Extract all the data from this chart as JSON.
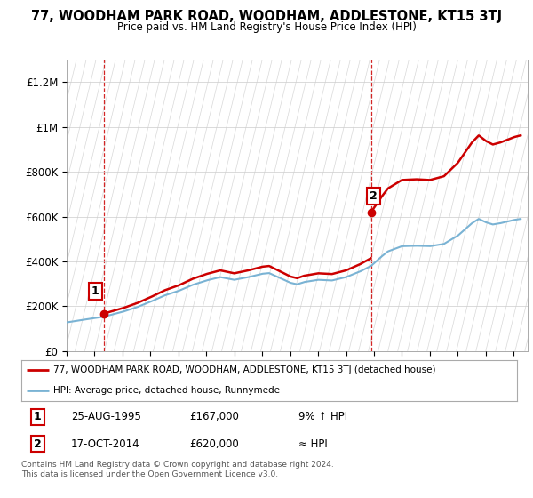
{
  "title": "77, WOODHAM PARK ROAD, WOODHAM, ADDLESTONE, KT15 3TJ",
  "subtitle": "Price paid vs. HM Land Registry's House Price Index (HPI)",
  "ylim": [
    0,
    1300000
  ],
  "xlim_start": 1993,
  "xlim_end": 2026,
  "sale1_date": 1995.65,
  "sale1_price": 167000,
  "sale2_date": 2014.79,
  "sale2_price": 620000,
  "property_color": "#cc0000",
  "hpi_color": "#7ab3d4",
  "hatch_color": "#d8d8d8",
  "legend_line1": "77, WOODHAM PARK ROAD, WOODHAM, ADDLESTONE, KT15 3TJ (detached house)",
  "legend_line2": "HPI: Average price, detached house, Runnymede",
  "table_row1_num": "1",
  "table_row1_date": "25-AUG-1995",
  "table_row1_price": "£167,000",
  "table_row1_hpi": "9% ↑ HPI",
  "table_row2_num": "2",
  "table_row2_date": "17-OCT-2014",
  "table_row2_price": "£620,000",
  "table_row2_hpi": "≈ HPI",
  "footnote1": "Contains HM Land Registry data © Crown copyright and database right 2024.",
  "footnote2": "This data is licensed under the Open Government Licence v3.0."
}
